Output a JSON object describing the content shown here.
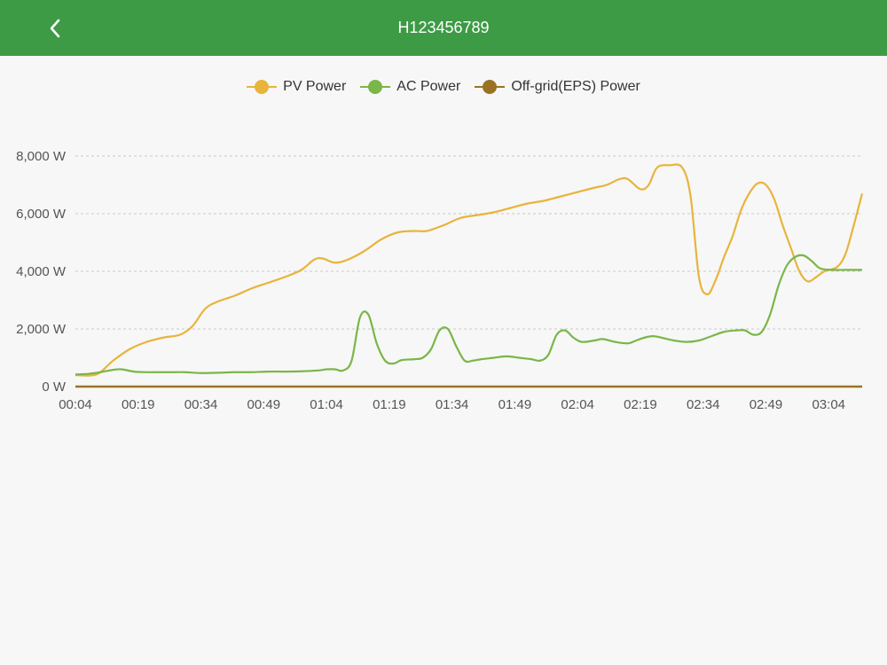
{
  "header": {
    "title": "H123456789",
    "back_icon": "chevron-left-icon"
  },
  "legend": [
    {
      "label": "PV Power",
      "color": "#e8b43c"
    },
    {
      "label": "AC Power",
      "color": "#7ab648"
    },
    {
      "label": "Off-grid(EPS) Power",
      "color": "#9a7224"
    }
  ],
  "chart_data": {
    "type": "line",
    "title": "",
    "xlabel": "",
    "ylabel": "",
    "grid": true,
    "legend_position": "top-center",
    "ylim": [
      0,
      8000
    ],
    "yticks": [
      {
        "value": 0,
        "label": "0 W"
      },
      {
        "value": 2000,
        "label": "2,000 W"
      },
      {
        "value": 4000,
        "label": "4,000 W"
      },
      {
        "value": 6000,
        "label": "6,000 W"
      },
      {
        "value": 8000,
        "label": "8,000 W"
      }
    ],
    "xlim": [
      4,
      192
    ],
    "xticks": [
      {
        "value": 4,
        "label": "00:04"
      },
      {
        "value": 19,
        "label": "00:19"
      },
      {
        "value": 34,
        "label": "00:34"
      },
      {
        "value": 49,
        "label": "00:49"
      },
      {
        "value": 64,
        "label": "01:04"
      },
      {
        "value": 79,
        "label": "01:19"
      },
      {
        "value": 94,
        "label": "01:34"
      },
      {
        "value": 109,
        "label": "01:49"
      },
      {
        "value": 124,
        "label": "02:04"
      },
      {
        "value": 139,
        "label": "02:19"
      },
      {
        "value": 154,
        "label": "02:34"
      },
      {
        "value": 169,
        "label": "02:49"
      },
      {
        "value": 184,
        "label": "03:04"
      }
    ],
    "series": [
      {
        "name": "PV Power",
        "color": "#e8b43c",
        "points": [
          [
            4,
            400
          ],
          [
            9,
            420
          ],
          [
            13,
            900
          ],
          [
            17,
            1300
          ],
          [
            21,
            1550
          ],
          [
            25,
            1700
          ],
          [
            29,
            1800
          ],
          [
            32,
            2100
          ],
          [
            35,
            2700
          ],
          [
            38,
            2950
          ],
          [
            42,
            3150
          ],
          [
            46,
            3400
          ],
          [
            50,
            3600
          ],
          [
            54,
            3800
          ],
          [
            58,
            4050
          ],
          [
            61,
            4400
          ],
          [
            63,
            4450
          ],
          [
            66,
            4300
          ],
          [
            69,
            4400
          ],
          [
            73,
            4700
          ],
          [
            77,
            5100
          ],
          [
            81,
            5350
          ],
          [
            85,
            5400
          ],
          [
            88,
            5400
          ],
          [
            92,
            5600
          ],
          [
            96,
            5850
          ],
          [
            100,
            5950
          ],
          [
            104,
            6050
          ],
          [
            108,
            6200
          ],
          [
            112,
            6350
          ],
          [
            116,
            6450
          ],
          [
            120,
            6600
          ],
          [
            124,
            6750
          ],
          [
            128,
            6900
          ],
          [
            131,
            7000
          ],
          [
            134,
            7200
          ],
          [
            136,
            7200
          ],
          [
            139,
            6850
          ],
          [
            141,
            7000
          ],
          [
            143,
            7600
          ],
          [
            146,
            7680
          ],
          [
            149,
            7600
          ],
          [
            151,
            6600
          ],
          [
            153,
            3800
          ],
          [
            155,
            3200
          ],
          [
            157,
            3700
          ],
          [
            159,
            4500
          ],
          [
            161,
            5200
          ],
          [
            163,
            6100
          ],
          [
            165,
            6700
          ],
          [
            167,
            7050
          ],
          [
            169,
            7000
          ],
          [
            171,
            6500
          ],
          [
            173,
            5600
          ],
          [
            175,
            4800
          ],
          [
            177,
            4000
          ],
          [
            179,
            3650
          ],
          [
            181,
            3800
          ],
          [
            183,
            4000
          ],
          [
            186,
            4150
          ],
          [
            188,
            4600
          ],
          [
            190,
            5600
          ],
          [
            192,
            6700
          ]
        ]
      },
      {
        "name": "AC Power",
        "color": "#7ab648",
        "points": [
          [
            4,
            420
          ],
          [
            7,
            440
          ],
          [
            10,
            500
          ],
          [
            13,
            580
          ],
          [
            15,
            600
          ],
          [
            18,
            520
          ],
          [
            21,
            500
          ],
          [
            24,
            500
          ],
          [
            27,
            500
          ],
          [
            30,
            500
          ],
          [
            34,
            470
          ],
          [
            38,
            480
          ],
          [
            42,
            500
          ],
          [
            46,
            500
          ],
          [
            50,
            520
          ],
          [
            54,
            520
          ],
          [
            58,
            530
          ],
          [
            62,
            560
          ],
          [
            64,
            600
          ],
          [
            66,
            600
          ],
          [
            68,
            560
          ],
          [
            70,
            900
          ],
          [
            72,
            2400
          ],
          [
            74,
            2500
          ],
          [
            76,
            1500
          ],
          [
            78,
            900
          ],
          [
            80,
            800
          ],
          [
            82,
            920
          ],
          [
            85,
            950
          ],
          [
            87,
            1000
          ],
          [
            89,
            1300
          ],
          [
            91,
            1950
          ],
          [
            93,
            2000
          ],
          [
            95,
            1400
          ],
          [
            97,
            900
          ],
          [
            99,
            900
          ],
          [
            101,
            950
          ],
          [
            104,
            1000
          ],
          [
            107,
            1050
          ],
          [
            110,
            1000
          ],
          [
            113,
            950
          ],
          [
            115,
            900
          ],
          [
            117,
            1100
          ],
          [
            119,
            1800
          ],
          [
            121,
            1950
          ],
          [
            123,
            1700
          ],
          [
            125,
            1550
          ],
          [
            128,
            1600
          ],
          [
            130,
            1650
          ],
          [
            133,
            1550
          ],
          [
            136,
            1500
          ],
          [
            138,
            1600
          ],
          [
            140,
            1700
          ],
          [
            142,
            1750
          ],
          [
            144,
            1700
          ],
          [
            147,
            1600
          ],
          [
            150,
            1550
          ],
          [
            153,
            1600
          ],
          [
            156,
            1750
          ],
          [
            159,
            1900
          ],
          [
            162,
            1950
          ],
          [
            164,
            1950
          ],
          [
            166,
            1800
          ],
          [
            168,
            1900
          ],
          [
            170,
            2500
          ],
          [
            172,
            3500
          ],
          [
            174,
            4200
          ],
          [
            176,
            4500
          ],
          [
            178,
            4550
          ],
          [
            180,
            4350
          ],
          [
            182,
            4100
          ],
          [
            185,
            4050
          ],
          [
            188,
            4050
          ],
          [
            192,
            4050
          ]
        ]
      },
      {
        "name": "Off-grid(EPS) Power",
        "color": "#9a7224",
        "points": [
          [
            4,
            0
          ],
          [
            192,
            0
          ]
        ]
      }
    ]
  }
}
